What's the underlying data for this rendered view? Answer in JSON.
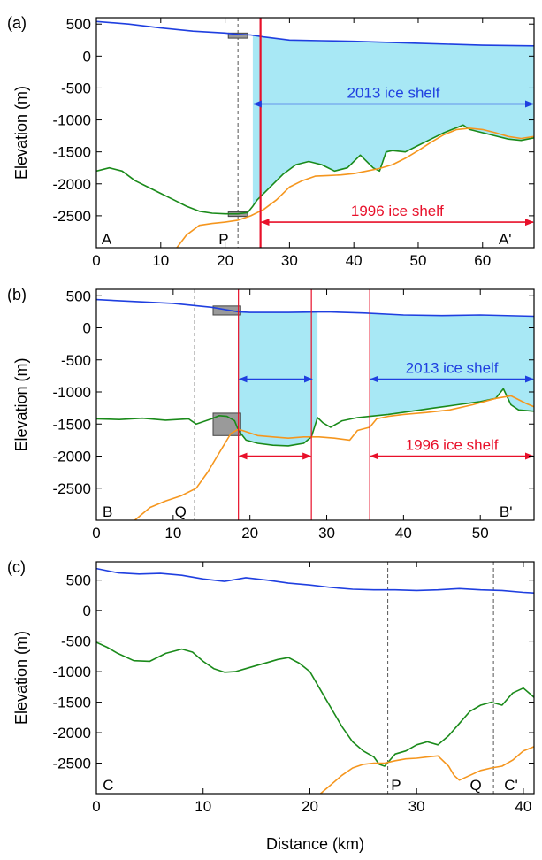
{
  "page": {
    "xlabel": "Distance (km)",
    "ylabel": "Elevation (m)"
  },
  "colors": {
    "surface": "#1f3fe0",
    "bed_green": "#1a8a1a",
    "bed_orange": "#f5961e",
    "ice": "#a8e8f5",
    "red": "#e8102a",
    "blue_arrow": "#1f3fe0"
  },
  "chart_data": [
    {
      "type": "line",
      "panel": "(a)",
      "xlim": [
        0,
        68
      ],
      "ylim": [
        -3000,
        600
      ],
      "xticks": [
        0,
        10,
        20,
        30,
        40,
        50,
        60
      ],
      "yticks": [
        500,
        0,
        -500,
        -1000,
        -1500,
        -2000,
        -2500
      ],
      "profile_labels": [
        {
          "text": "A",
          "x": 0.8
        },
        {
          "text": "P",
          "x": 19
        },
        {
          "text": "A'",
          "x": 62.5
        }
      ],
      "dashed_lines": [
        22
      ],
      "grey_boxes": [
        [
          20.5,
          23.5,
          280,
          360
        ],
        [
          20.5,
          23.5,
          -2510,
          -2440
        ]
      ],
      "ice_fill": [
        {
          "x": [
            24.3,
            68
          ],
          "bed": "green"
        }
      ],
      "red_lines": [
        {
          "x": 25.5,
          "heavy": true
        }
      ],
      "arrows": [
        {
          "label": "2013 ice shelf",
          "x": [
            24.3,
            68
          ],
          "y": -750,
          "color": "blue"
        },
        {
          "label": "1996 ice shelf",
          "x": [
            25.5,
            68
          ],
          "y": -2600,
          "color": "red"
        }
      ],
      "series": [
        {
          "color": "surface",
          "x": [
            0,
            5,
            10,
            15,
            20,
            22,
            24,
            26,
            30,
            35,
            40,
            50,
            60,
            68
          ],
          "y": [
            540,
            500,
            440,
            390,
            360,
            340,
            330,
            300,
            250,
            240,
            230,
            200,
            170,
            160
          ]
        },
        {
          "color": "bed_green",
          "x": [
            0,
            2,
            4,
            6,
            8,
            10,
            12,
            14,
            16,
            18,
            20,
            22,
            23.5,
            24.3,
            25,
            27,
            29,
            31,
            33,
            35,
            37,
            39,
            41,
            43,
            44,
            45,
            46,
            48,
            50,
            52,
            54,
            56,
            57,
            58,
            60,
            62,
            64,
            66,
            68
          ],
          "y": [
            -1800,
            -1750,
            -1800,
            -1950,
            -2050,
            -2150,
            -2250,
            -2350,
            -2430,
            -2460,
            -2470,
            -2470,
            -2450,
            -2350,
            -2250,
            -2050,
            -1850,
            -1700,
            -1650,
            -1700,
            -1800,
            -1750,
            -1550,
            -1750,
            -1800,
            -1500,
            -1480,
            -1500,
            -1400,
            -1300,
            -1200,
            -1120,
            -1080,
            -1150,
            -1200,
            -1250,
            -1300,
            -1320,
            -1280
          ]
        },
        {
          "color": "bed_orange",
          "x": [
            12.5,
            14,
            16,
            18,
            20,
            22,
            24,
            26,
            28,
            30,
            32,
            34,
            36,
            38,
            40,
            42,
            44,
            46,
            48,
            50,
            52,
            54,
            56,
            58,
            60,
            62,
            64,
            66,
            68
          ],
          "y": [
            -3000,
            -2800,
            -2650,
            -2620,
            -2600,
            -2570,
            -2500,
            -2400,
            -2250,
            -2050,
            -1950,
            -1880,
            -1870,
            -1860,
            -1840,
            -1800,
            -1760,
            -1700,
            -1600,
            -1480,
            -1350,
            -1230,
            -1150,
            -1130,
            -1150,
            -1200,
            -1260,
            -1290,
            -1260
          ]
        }
      ]
    },
    {
      "type": "line",
      "panel": "(b)",
      "xlim": [
        0,
        57
      ],
      "ylim": [
        -3000,
        600
      ],
      "xticks": [
        0,
        10,
        20,
        30,
        40,
        50
      ],
      "yticks": [
        500,
        0,
        -500,
        -1000,
        -1500,
        -2000,
        -2500
      ],
      "profile_labels": [
        {
          "text": "B",
          "x": 0.8
        },
        {
          "text": "Q",
          "x": 10.2
        },
        {
          "text": "B'",
          "x": 52.5
        }
      ],
      "dashed_lines": [
        12.8
      ],
      "grey_boxes": [
        [
          15.2,
          18.8,
          200,
          340
        ],
        [
          15.2,
          18.8,
          -1680,
          -1330
        ]
      ],
      "ice_fill": [
        {
          "x": [
            18.5,
            28.8
          ],
          "bed": "green"
        },
        {
          "x": [
            35.6,
            57
          ],
          "bed": "green"
        }
      ],
      "red_lines": [
        {
          "x": 18.5,
          "heavy": false
        },
        {
          "x": 28,
          "heavy": false
        },
        {
          "x": 35.6,
          "heavy": false
        }
      ],
      "arrows": [
        {
          "label": "",
          "x": [
            18.5,
            28.2
          ],
          "y": -800,
          "color": "blue"
        },
        {
          "label": "2013 ice shelf",
          "x": [
            35.6,
            57
          ],
          "y": -800,
          "color": "blue"
        },
        {
          "label": "",
          "x": [
            18.5,
            28
          ],
          "y": -2000,
          "color": "red"
        },
        {
          "label": "1996 ice shelf",
          "x": [
            35.6,
            57
          ],
          "y": -2000,
          "color": "red"
        }
      ],
      "series": [
        {
          "color": "surface",
          "x": [
            0,
            5,
            10,
            15,
            18.5,
            20,
            25,
            30,
            35,
            40,
            45,
            50,
            57
          ],
          "y": [
            440,
            410,
            380,
            320,
            250,
            240,
            240,
            250,
            230,
            200,
            190,
            200,
            180
          ]
        },
        {
          "color": "bed_green",
          "x": [
            0,
            3,
            6,
            9,
            12,
            13,
            15,
            16,
            17,
            18,
            18.5,
            19.5,
            21,
            23,
            25,
            26,
            27,
            28,
            28.8,
            29.5,
            30.5,
            32,
            34,
            35.6,
            38,
            41,
            44,
            47,
            50,
            52,
            53,
            54,
            55,
            57
          ],
          "y": [
            -1420,
            -1430,
            -1410,
            -1440,
            -1420,
            -1500,
            -1420,
            -1370,
            -1380,
            -1450,
            -1600,
            -1750,
            -1800,
            -1830,
            -1840,
            -1820,
            -1800,
            -1700,
            -1400,
            -1480,
            -1550,
            -1450,
            -1400,
            -1380,
            -1350,
            -1300,
            -1250,
            -1200,
            -1150,
            -1100,
            -950,
            -1200,
            -1280,
            -1300
          ]
        },
        {
          "color": "bed_orange",
          "x": [
            5,
            7,
            9,
            11,
            13,
            14.5,
            16,
            17.5,
            18.5,
            19.5,
            21,
            23,
            25,
            27,
            29,
            31,
            33,
            34,
            35.6,
            36.5,
            38,
            40,
            43,
            46,
            49,
            52,
            54,
            56,
            57
          ],
          "y": [
            -3000,
            -2800,
            -2700,
            -2620,
            -2500,
            -2250,
            -1950,
            -1650,
            -1580,
            -1620,
            -1680,
            -1700,
            -1720,
            -1700,
            -1700,
            -1720,
            -1750,
            -1600,
            -1550,
            -1420,
            -1380,
            -1350,
            -1320,
            -1280,
            -1200,
            -1100,
            -1060,
            -1180,
            -1230
          ]
        }
      ]
    },
    {
      "type": "line",
      "panel": "(c)",
      "xlim": [
        0,
        41
      ],
      "ylim": [
        -3000,
        800
      ],
      "xticks": [
        0,
        10,
        20,
        30,
        40
      ],
      "yticks": [
        500,
        0,
        -500,
        -1000,
        -1500,
        -2000,
        -2500
      ],
      "profile_labels": [
        {
          "text": "C",
          "x": 0.6
        },
        {
          "text": "P",
          "x": 27.6
        },
        {
          "text": "Q",
          "x": 35
        },
        {
          "text": "C'",
          "x": 38.2
        }
      ],
      "dashed_lines": [
        27.3,
        37.2
      ],
      "grey_boxes": [],
      "ice_fill": [],
      "red_lines": [],
      "arrows": [],
      "series": [
        {
          "color": "surface",
          "x": [
            0,
            2,
            4,
            6,
            8,
            10,
            12,
            14,
            16,
            18,
            20,
            22,
            24,
            26,
            28,
            30,
            32,
            34,
            36,
            38,
            40,
            41
          ],
          "y": [
            690,
            620,
            600,
            610,
            580,
            520,
            480,
            540,
            500,
            450,
            420,
            380,
            350,
            340,
            340,
            330,
            340,
            360,
            340,
            330,
            300,
            290
          ]
        },
        {
          "color": "bed_green",
          "x": [
            0,
            1,
            2,
            3.5,
            5,
            6.5,
            8,
            9,
            10,
            11,
            12,
            13,
            14,
            15,
            16,
            17,
            18,
            19,
            20,
            21,
            22,
            23,
            24,
            25,
            26,
            26.5,
            27,
            27.5,
            28,
            29,
            30,
            31,
            32,
            33,
            34,
            35,
            36,
            37,
            38,
            39,
            40,
            41
          ],
          "y": [
            -520,
            -600,
            -700,
            -820,
            -830,
            -700,
            -630,
            -680,
            -830,
            -950,
            -1010,
            -1000,
            -950,
            -900,
            -850,
            -800,
            -770,
            -860,
            -1000,
            -1300,
            -1600,
            -1900,
            -2150,
            -2300,
            -2400,
            -2520,
            -2550,
            -2450,
            -2350,
            -2300,
            -2200,
            -2150,
            -2200,
            -2050,
            -1850,
            -1650,
            -1550,
            -1500,
            -1550,
            -1350,
            -1270,
            -1420
          ]
        },
        {
          "color": "bed_orange",
          "x": [
            21,
            22,
            23,
            24,
            25,
            26,
            27,
            28,
            29,
            30,
            31,
            32,
            33,
            33.5,
            34,
            35,
            36,
            37,
            38,
            39,
            40,
            41
          ],
          "y": [
            -3000,
            -2850,
            -2700,
            -2580,
            -2520,
            -2500,
            -2500,
            -2460,
            -2430,
            -2420,
            -2400,
            -2380,
            -2550,
            -2700,
            -2780,
            -2700,
            -2620,
            -2580,
            -2550,
            -2450,
            -2300,
            -2230
          ]
        }
      ]
    }
  ]
}
